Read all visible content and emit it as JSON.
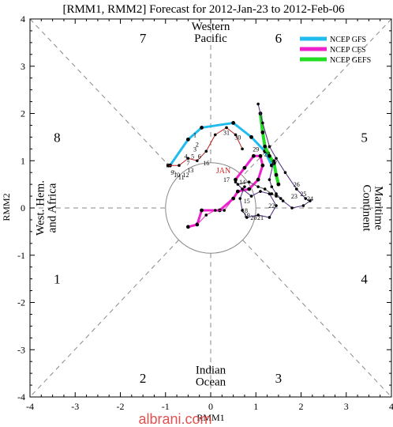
{
  "chart_data": {
    "type": "line",
    "title": "[RMM1, RMM2] Forecast for 2012-Jan-23 to 2012-Feb-06",
    "xlabel": "RMM1",
    "ylabel": "RMM2",
    "xlim": [
      -4,
      4
    ],
    "ylim": [
      -4,
      4
    ],
    "xticks": [
      "-4",
      "-3",
      "-2",
      "-1",
      "0",
      "1",
      "2",
      "3",
      "4"
    ],
    "yticks": [
      "-4",
      "-3",
      "-2",
      "-1",
      "0",
      "1",
      "2",
      "3",
      "4"
    ],
    "grid": false,
    "legend_position": "top-right",
    "phases": [
      {
        "label": "1",
        "x": -3.4,
        "y": -1.5
      },
      {
        "label": "2",
        "x": -1.5,
        "y": -3.6
      },
      {
        "label": "3",
        "x": 1.5,
        "y": -3.6
      },
      {
        "label": "4",
        "x": 3.4,
        "y": -1.5
      },
      {
        "label": "5",
        "x": 3.4,
        "y": 1.5
      },
      {
        "label": "6",
        "x": 1.5,
        "y": 3.6
      },
      {
        "label": "7",
        "x": -1.5,
        "y": 3.6
      },
      {
        "label": "8",
        "x": -3.4,
        "y": 1.5
      }
    ],
    "regions": [
      {
        "lines": [
          "Western",
          "Pacific"
        ],
        "x": 0,
        "y": 3.72
      },
      {
        "lines": [
          "Indian",
          "Ocean"
        ],
        "x": 0,
        "y": -3.55
      },
      {
        "lines": [
          "West. Hem.",
          "and Africa"
        ],
        "x": -3.65,
        "y": 0,
        "rotate": -90
      },
      {
        "lines": [
          "Maritime",
          "Continent"
        ],
        "x": 3.6,
        "y": 0,
        "rotate": 90
      }
    ],
    "series": [
      {
        "name": "NCEP GFS",
        "color": "#22bbee",
        "width": 3,
        "x": [
          -0.9,
          -0.5,
          -0.2,
          0.5,
          0.9,
          1.2,
          1.35
        ],
        "y": [
          0.9,
          1.45,
          1.7,
          1.8,
          1.5,
          1.2,
          0.9
        ]
      },
      {
        "name": "NCEP CFS",
        "color": "#ee22cc",
        "width": 3,
        "x": [
          0.55,
          0.75,
          0.95,
          1.1,
          1.15,
          1.05,
          0.85,
          0.6,
          0.5,
          0.2,
          -0.2,
          -0.3,
          -0.5
        ],
        "y": [
          0.6,
          0.85,
          1.1,
          1.1,
          0.9,
          0.6,
          0.4,
          0.35,
          0.2,
          -0.05,
          -0.05,
          -0.35,
          -0.4
        ]
      },
      {
        "name": "NCEP GEFS",
        "color": "#22dd22",
        "width": 4,
        "x": [
          1.1,
          1.15,
          1.2,
          1.3,
          1.4,
          1.45,
          1.5
        ],
        "y": [
          2.0,
          1.6,
          1.3,
          1.1,
          0.95,
          0.7,
          0.5
        ]
      },
      {
        "name": "",
        "color": "#4b2a7f",
        "width": 1,
        "x": [
          1.05,
          1.15,
          1.3,
          1.45,
          1.65,
          1.9,
          2.1,
          2.2,
          2.05,
          1.8,
          1.6,
          1.45,
          1.35,
          1.3,
          1.4
        ],
        "y": [
          2.2,
          1.8,
          1.3,
          1.05,
          0.75,
          0.4,
          0.2,
          0.15,
          0.05,
          0.0,
          0.15,
          0.3,
          0.45,
          0.6,
          1.0
        ]
      },
      {
        "name": "",
        "color": "#bb2222",
        "width": 1,
        "x": [
          -0.95,
          -0.7,
          -0.5,
          -0.3,
          -0.1,
          0.1,
          0.35,
          0.55,
          0.7
        ],
        "y": [
          0.9,
          0.9,
          1.05,
          1.0,
          1.2,
          1.55,
          1.7,
          1.55,
          1.25
        ]
      },
      {
        "name": "",
        "color": "#4b2a7f",
        "width": 1,
        "x": [
          0.55,
          0.7,
          0.9,
          1.1,
          1.3,
          1.45,
          1.3,
          1.05,
          0.8,
          0.7,
          0.65,
          0.75
        ],
        "y": [
          0.55,
          0.4,
          0.25,
          0.35,
          0.3,
          0.05,
          -0.2,
          -0.15,
          -0.2,
          -0.05,
          0.2,
          0.45
        ]
      },
      {
        "name": "",
        "color": "#555555",
        "width": 1,
        "x": [
          0.6,
          0.85,
          1.05,
          1.2,
          1.35,
          1.45,
          1.55
        ],
        "y": [
          0.5,
          0.55,
          0.45,
          0.4,
          0.3,
          0.25,
          0.2
        ]
      },
      {
        "name": "",
        "color": "#ee22cc",
        "width": 1,
        "x": [
          0.5,
          0.3,
          0.1,
          -0.1,
          -0.3,
          -0.5
        ],
        "y": [
          0.2,
          -0.05,
          -0.05,
          -0.15,
          -0.35,
          -0.4
        ]
      }
    ],
    "day_labels": [
      {
        "text": "31",
        "x": 0.35,
        "y": 1.6
      },
      {
        "text": "30",
        "x": 0.6,
        "y": 1.5
      },
      {
        "text": "29",
        "x": 1.0,
        "y": 1.25
      },
      {
        "text": "28",
        "x": 1.25,
        "y": 1.15
      },
      {
        "text": "27",
        "x": 1.4,
        "y": 0.95
      },
      {
        "text": "26",
        "x": 1.9,
        "y": 0.5
      },
      {
        "text": "25",
        "x": 2.05,
        "y": 0.3
      },
      {
        "text": "24",
        "x": 2.2,
        "y": 0.2
      },
      {
        "text": "23",
        "x": 1.85,
        "y": 0.25
      },
      {
        "text": "22",
        "x": 1.35,
        "y": 0.05
      },
      {
        "text": "21",
        "x": 1.1,
        "y": -0.2
      },
      {
        "text": "20",
        "x": 0.95,
        "y": -0.2
      },
      {
        "text": "19",
        "x": 0.8,
        "y": -0.15
      },
      {
        "text": "18",
        "x": 0.75,
        "y": -0.05
      },
      {
        "text": "17",
        "x": 0.35,
        "y": 0.6
      },
      {
        "text": "16",
        "x": -0.1,
        "y": 0.95
      },
      {
        "text": "15",
        "x": 0.8,
        "y": 0.15
      },
      {
        "text": "14",
        "x": 0.7,
        "y": 0.55
      },
      {
        "text": "13",
        "x": -0.45,
        "y": 0.8
      },
      {
        "text": "12",
        "x": -0.55,
        "y": 0.7
      },
      {
        "text": "11",
        "x": -0.65,
        "y": 0.65
      },
      {
        "text": "10",
        "x": -0.75,
        "y": 0.7
      },
      {
        "text": "9",
        "x": -0.85,
        "y": 0.75
      },
      {
        "text": "8",
        "x": -0.95,
        "y": 0.9
      },
      {
        "text": "7",
        "x": -0.5,
        "y": 0.95
      },
      {
        "text": "6",
        "x": -0.25,
        "y": 1.1
      },
      {
        "text": "5",
        "x": -0.4,
        "y": 1.1
      },
      {
        "text": "4",
        "x": -0.55,
        "y": 1.1
      },
      {
        "text": "3",
        "x": -0.35,
        "y": 1.25
      },
      {
        "text": "2",
        "x": -0.3,
        "y": 1.35
      },
      {
        "text": "1",
        "x": -0.35,
        "y": 1.55
      }
    ],
    "annotations": [
      {
        "text": "JAN",
        "x": 0.28,
        "y": 0.8,
        "color": "#cc2222"
      }
    ]
  },
  "watermark": "albrani.com"
}
